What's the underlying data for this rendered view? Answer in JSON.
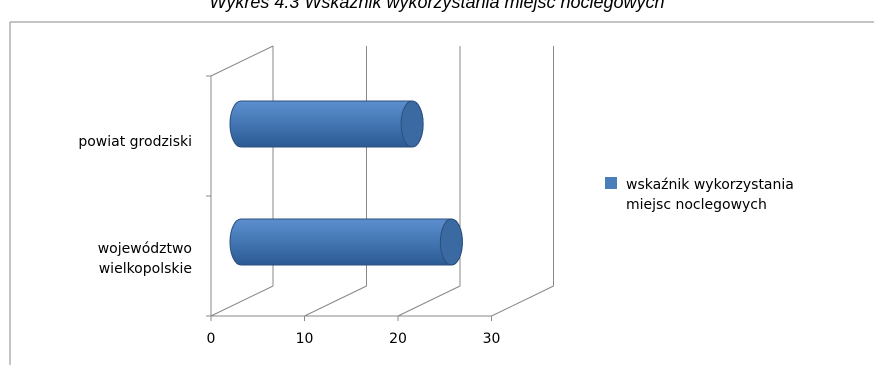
{
  "chart_data": {
    "type": "bar",
    "orientation": "horizontal",
    "style": "3d-cylinder",
    "title": "Wykres 4.3 Wskaźnik wykorzystania miejsc noclegowych",
    "categories": [
      "powiat grodziski",
      "województwo wielkopolskie"
    ],
    "series": [
      {
        "name": "wskaźnik wykorzystania miejsc noclegowych",
        "values": [
          18.3,
          22.5
        ],
        "color": "#4a7ebb"
      }
    ],
    "x_ticks": [
      "0",
      "10",
      "20",
      "30"
    ],
    "xlim": [
      0,
      30
    ],
    "grid": true,
    "legend_position": "right"
  }
}
